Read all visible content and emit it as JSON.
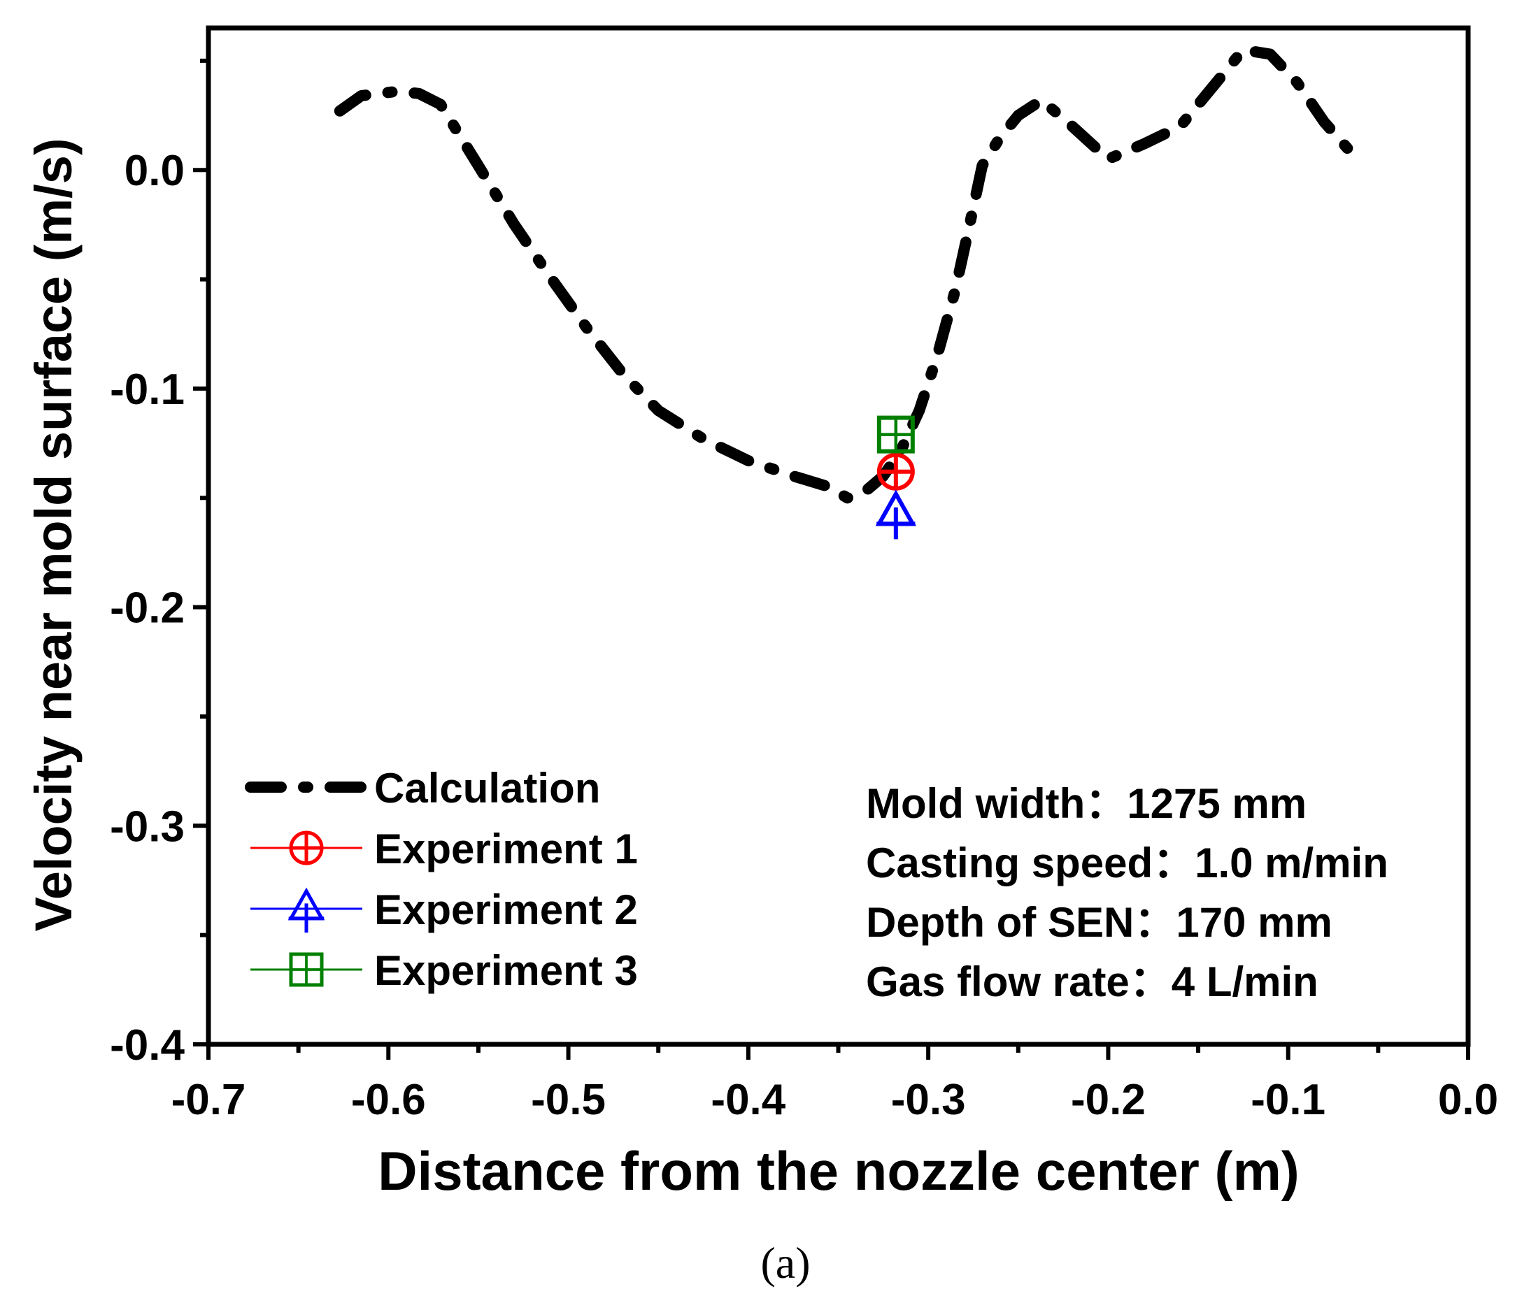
{
  "chart_data": {
    "type": "line",
    "title": "",
    "xlabel": "Distance from the nozzle center (m)",
    "ylabel": "Velocity near mold surface (m/s)",
    "xlim": [
      -0.7,
      0.0
    ],
    "ylim": [
      -0.4,
      0.065
    ],
    "x_ticks": [
      -0.7,
      -0.6,
      -0.5,
      -0.4,
      -0.3,
      -0.2,
      -0.1,
      0.0
    ],
    "x_tick_labels": [
      "-0.7",
      "-0.6",
      "-0.5",
      "-0.4",
      "-0.3",
      "-0.2",
      "-0.1",
      "0.0"
    ],
    "y_ticks": [
      0.0,
      -0.1,
      -0.2,
      -0.3,
      -0.4
    ],
    "y_tick_labels": [
      "0.0",
      "-0.1",
      "-0.2",
      "-0.3",
      "-0.4"
    ],
    "grid": false,
    "legend_position": "bottom-left",
    "series": [
      {
        "name": "Calculation",
        "style": "dash-dot",
        "color": "#000000",
        "x": [
          -0.627,
          -0.615,
          -0.595,
          -0.583,
          -0.571,
          -0.55,
          -0.53,
          -0.51,
          -0.49,
          -0.47,
          -0.45,
          -0.425,
          -0.4,
          -0.375,
          -0.355,
          -0.345,
          -0.335,
          -0.325,
          -0.315,
          -0.305,
          -0.295,
          -0.285,
          -0.277,
          -0.27,
          -0.26,
          -0.25,
          -0.237,
          -0.22,
          -0.2,
          -0.18,
          -0.16,
          -0.14,
          -0.125,
          -0.11,
          -0.095,
          -0.08,
          -0.065
        ],
        "y": [
          0.027,
          0.034,
          0.036,
          0.035,
          0.03,
          0.002,
          -0.025,
          -0.049,
          -0.072,
          -0.093,
          -0.11,
          -0.123,
          -0.133,
          -0.14,
          -0.145,
          -0.15,
          -0.147,
          -0.14,
          -0.128,
          -0.11,
          -0.085,
          -0.055,
          -0.025,
          0.002,
          0.015,
          0.025,
          0.032,
          0.02,
          0.005,
          0.012,
          0.02,
          0.04,
          0.055,
          0.053,
          0.04,
          0.022,
          0.008
        ]
      },
      {
        "name": "Experiment 1",
        "color": "#ff0000",
        "marker": "circle-plus",
        "x": [
          -0.318
        ],
        "y": [
          -0.138
        ]
      },
      {
        "name": "Experiment 2",
        "color": "#0000ff",
        "marker": "triangle-plus",
        "x": [
          -0.318
        ],
        "y": [
          -0.157
        ]
      },
      {
        "name": "Experiment 3",
        "color": "#008000",
        "marker": "square-plus",
        "x": [
          -0.318
        ],
        "y": [
          -0.121
        ]
      }
    ],
    "annotations": [
      "Mold width：1275 mm",
      "Casting speed：1.0 m/min",
      "Depth of SEN：170 mm",
      "Gas flow rate：4 L/min"
    ],
    "caption": "(a)"
  }
}
